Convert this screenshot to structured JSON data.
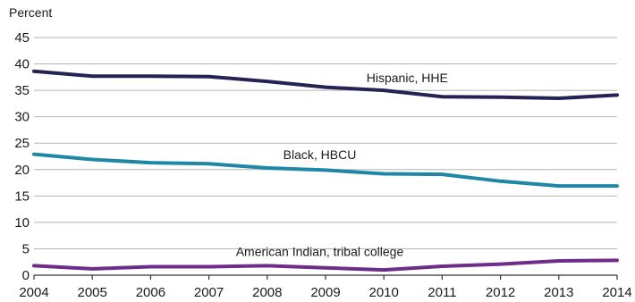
{
  "chart_data": {
    "type": "line",
    "title": "",
    "xlabel": "",
    "ylabel": "Percent",
    "x": [
      2004,
      2005,
      2006,
      2007,
      2008,
      2009,
      2010,
      2011,
      2012,
      2013,
      2014
    ],
    "x_tick_labels": [
      "2004",
      "2005",
      "2006",
      "2007",
      "2008",
      "2009",
      "2010",
      "2011",
      "2012",
      "2013",
      "2014"
    ],
    "ylim": [
      0,
      45
    ],
    "y_ticks": [
      0,
      5,
      10,
      15,
      20,
      25,
      30,
      35,
      40,
      45
    ],
    "y_tick_labels": [
      "0",
      "5",
      "10",
      "15",
      "20",
      "25",
      "30",
      "35",
      "40",
      "45"
    ],
    "grid": true,
    "legend": "inline labels on series",
    "series": [
      {
        "name": "Hispanic, HHE",
        "color": "#232355",
        "values": [
          38.6,
          37.7,
          37.7,
          37.6,
          36.7,
          35.6,
          35.0,
          33.8,
          33.7,
          33.5,
          34.1
        ]
      },
      {
        "name": "Black, HBCU",
        "color": "#1f87a6",
        "values": [
          22.9,
          21.9,
          21.3,
          21.1,
          20.3,
          19.9,
          19.2,
          19.1,
          17.8,
          16.9,
          16.9
        ]
      },
      {
        "name": "American Indian, tribal college",
        "color": "#6e2d8a",
        "values": [
          1.8,
          1.2,
          1.6,
          1.6,
          1.8,
          1.4,
          1.0,
          1.7,
          2.1,
          2.7,
          2.8
        ]
      }
    ]
  }
}
